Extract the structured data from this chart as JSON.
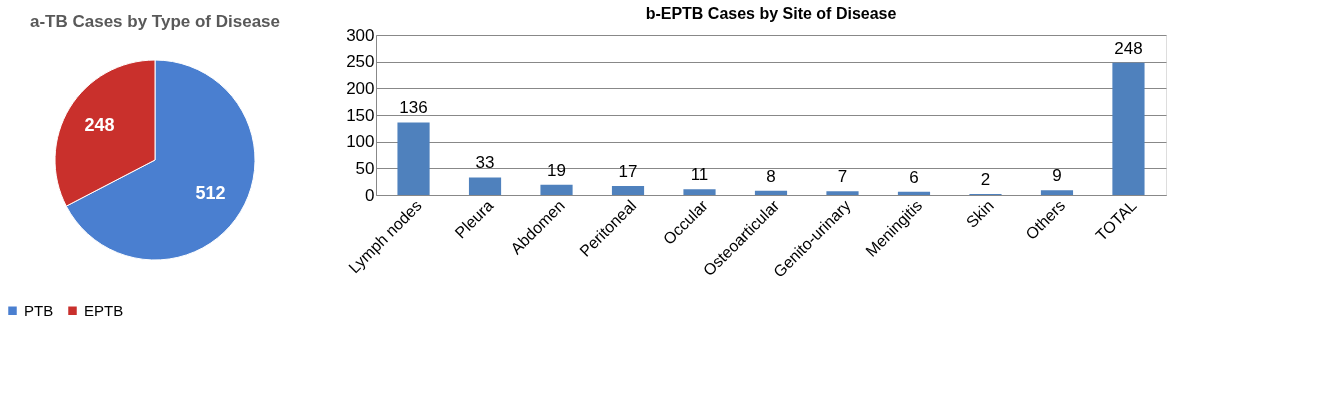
{
  "chart_data": [
    {
      "type": "pie",
      "title": "a-TB Cases by Type of Disease",
      "categories": [
        "PTB",
        "EPTB"
      ],
      "values": [
        512,
        248
      ],
      "colors": [
        "#4a7fd0",
        "#c9302c"
      ],
      "data_labels": true,
      "legend": "bottom"
    },
    {
      "type": "bar",
      "title": "b-EPTB Cases by Site of Disease",
      "categories": [
        "Lymph nodes",
        "Pleura",
        "Abdomen",
        "Peritoneal",
        "Occular",
        "Osteoarticular",
        "Genito-urinary",
        "Meningitis",
        "Skin",
        "Others",
        "TOTAL"
      ],
      "values": [
        136,
        33,
        19,
        17,
        11,
        8,
        7,
        6,
        2,
        9,
        248
      ],
      "color": "#4f81bd",
      "ylim": [
        0,
        300
      ],
      "yticks": [
        0,
        50,
        100,
        150,
        200,
        250,
        300
      ],
      "grid": "y",
      "data_labels": true
    }
  ]
}
